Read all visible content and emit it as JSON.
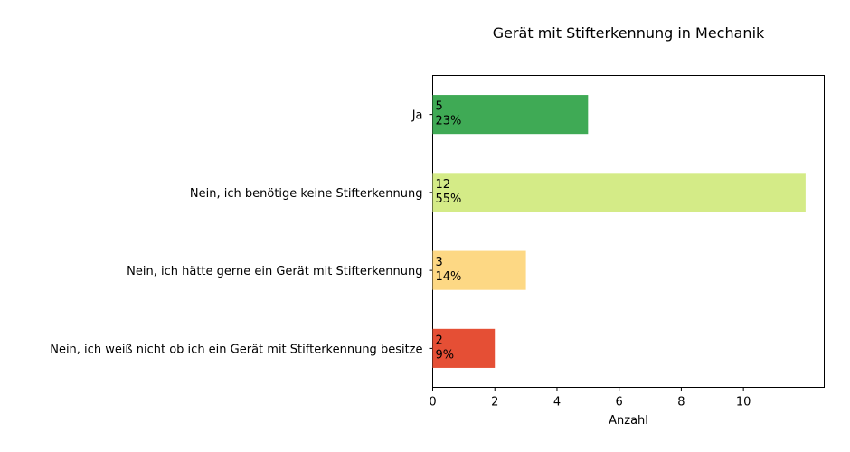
{
  "chart_data": {
    "type": "bar",
    "orientation": "horizontal",
    "title": "Gerät mit Stifterkennung in Mechanik",
    "xlabel": "Anzahl",
    "ylabel": "",
    "xlim": [
      0,
      12.6
    ],
    "xticks": [
      0,
      2,
      4,
      6,
      8,
      10
    ],
    "grid": false,
    "legend": "none",
    "categories": [
      "Ja",
      "Nein, ich benötige keine Stifterkennung",
      "Nein, ich hätte gerne ein Gerät mit Stifterkennung",
      "Nein, ich weiß nicht ob ich ein Gerät mit Stifterkennung besitze"
    ],
    "values": [
      5,
      12,
      3,
      2
    ],
    "percent_labels": [
      "23%",
      "55%",
      "14%",
      "9%"
    ],
    "colors": [
      "#3faa55",
      "#d4eb87",
      "#fdd884",
      "#e54f35"
    ]
  }
}
